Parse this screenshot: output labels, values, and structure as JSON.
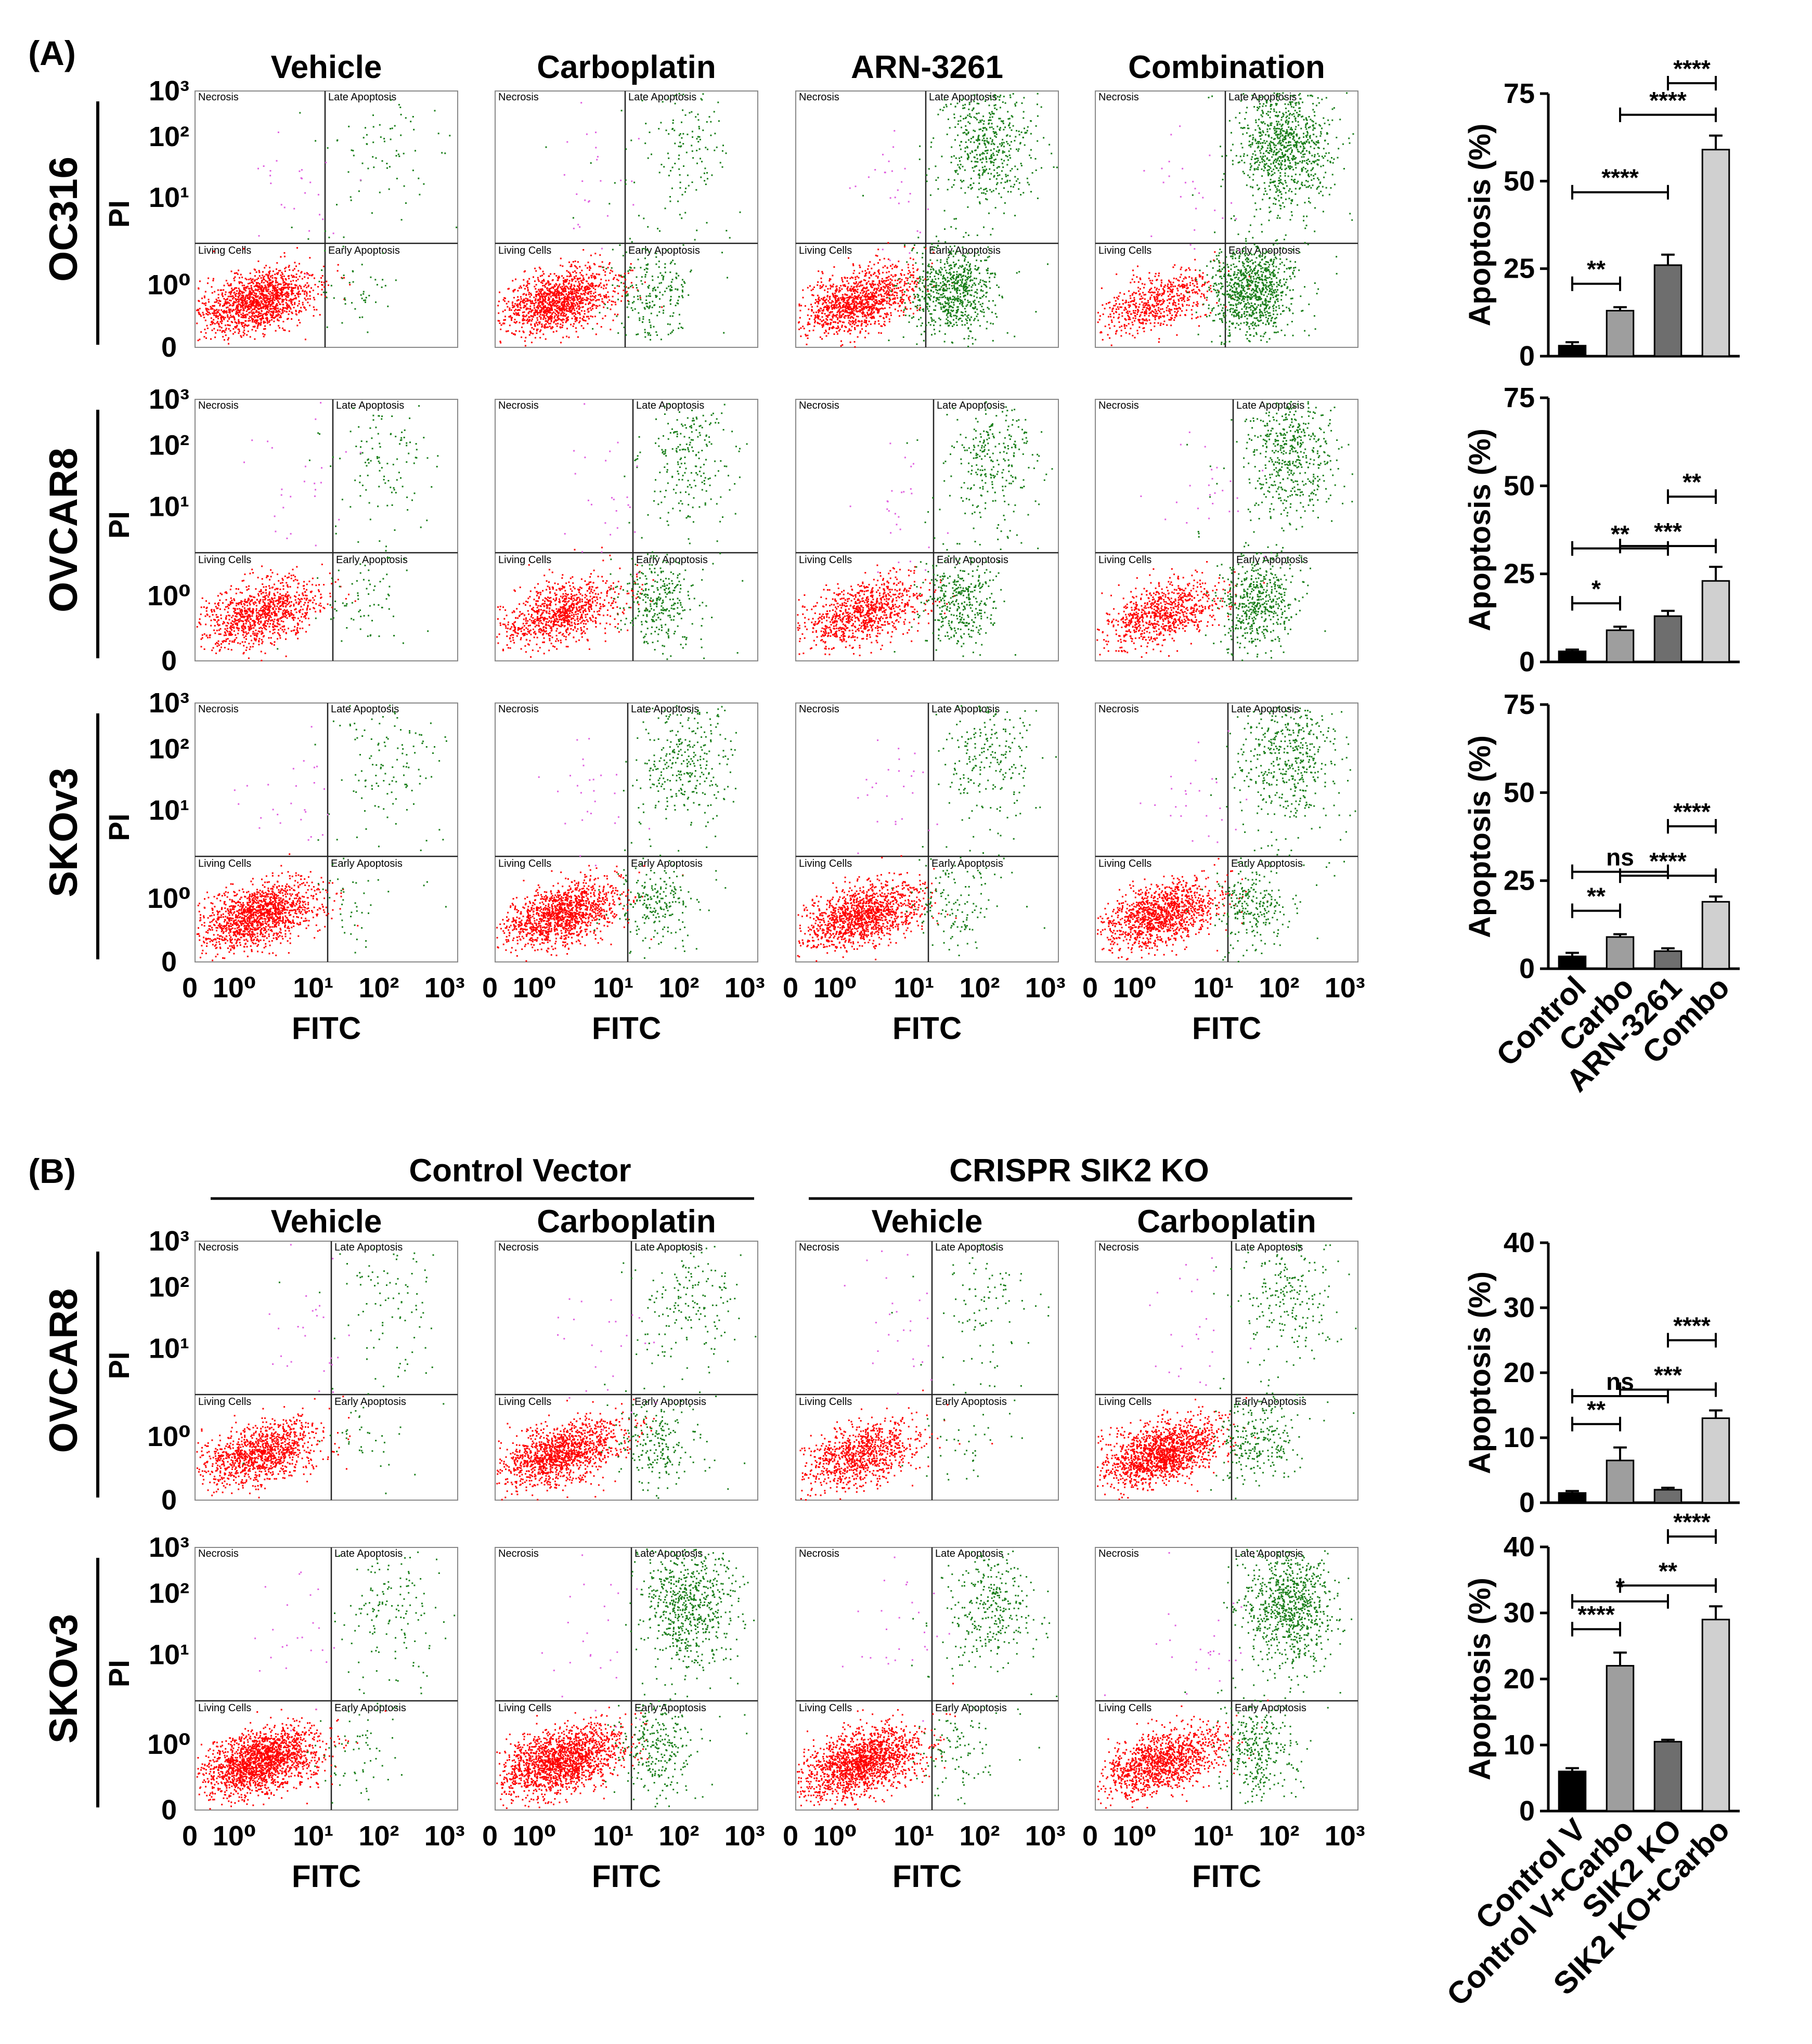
{
  "panels": [
    {
      "label": "(A)",
      "group_headers": [],
      "column_headers": [
        "Vehicle",
        "Carboplatin",
        "ARN-3261",
        "Combination"
      ],
      "rows": [
        "OC316",
        "OVCAR8",
        "SKOv3"
      ]
    },
    {
      "label": "(B)",
      "group_headers": [
        "Control Vector",
        "CRISPR SIK2 KO"
      ],
      "column_headers": [
        "Vehicle",
        "Carboplatin",
        "Vehicle",
        "Carboplatin"
      ],
      "rows": [
        "OVCAR8",
        "SKOv3"
      ]
    }
  ],
  "flow_axes": {
    "y_label": "PI",
    "x_label": "FITC",
    "ticks": [
      "0",
      "10⁰",
      "10¹",
      "10²",
      "10³"
    ],
    "y_ticks": [
      "0",
      "10⁰",
      "10¹",
      "10²",
      "10³"
    ],
    "quadrants": [
      "Necrosis",
      "Late Apoptosis",
      "Living Cells",
      "Early Apoptosis"
    ],
    "colors": {
      "living": "#ff0000",
      "apoptotic": "#1a7f1a",
      "necrotic": "#e060e0"
    }
  },
  "chart_data": [
    {
      "type": "bar",
      "panel": "A",
      "row": "OC316",
      "categories": [
        "Control",
        "Carbo",
        "ARN-3261",
        "Combo"
      ],
      "values": [
        3,
        13,
        26,
        59
      ],
      "errors": [
        1,
        1,
        3,
        4
      ],
      "ylabel": "Apoptosis (%)",
      "ylim": [
        0,
        75
      ],
      "yticks": [
        0,
        25,
        50,
        75
      ],
      "colors": [
        "#000000",
        "#9e9e9e",
        "#6e6e6e",
        "#d0d0d0"
      ],
      "comparisons": [
        {
          "from": 0,
          "to": 1,
          "label": "**"
        },
        {
          "from": 0,
          "to": 2,
          "label": "****"
        },
        {
          "from": 1,
          "to": 3,
          "label": "****"
        },
        {
          "from": 2,
          "to": 3,
          "label": "****"
        }
      ]
    },
    {
      "type": "bar",
      "panel": "A",
      "row": "OVCAR8",
      "categories": [
        "Control",
        "Carbo",
        "ARN-3261",
        "Combo"
      ],
      "values": [
        3,
        9,
        13,
        23
      ],
      "errors": [
        0.5,
        1,
        1.5,
        4
      ],
      "ylabel": "Apoptosis (%)",
      "ylim": [
        0,
        75
      ],
      "yticks": [
        0,
        25,
        50,
        75
      ],
      "colors": [
        "#000000",
        "#9e9e9e",
        "#6e6e6e",
        "#d0d0d0"
      ],
      "comparisons": [
        {
          "from": 0,
          "to": 1,
          "label": "*"
        },
        {
          "from": 0,
          "to": 2,
          "label": "**"
        },
        {
          "from": 1,
          "to": 3,
          "label": "***"
        },
        {
          "from": 2,
          "to": 3,
          "label": "**"
        }
      ]
    },
    {
      "type": "bar",
      "panel": "A",
      "row": "SKOv3",
      "categories": [
        "Control",
        "Carbo",
        "ARN-3261",
        "Combo"
      ],
      "values": [
        3.5,
        9,
        5,
        19
      ],
      "errors": [
        1,
        0.8,
        0.8,
        1.5
      ],
      "ylabel": "Apoptosis (%)",
      "ylim": [
        0,
        75
      ],
      "yticks": [
        0,
        25,
        50,
        75
      ],
      "colors": [
        "#000000",
        "#9e9e9e",
        "#6e6e6e",
        "#d0d0d0"
      ],
      "comparisons": [
        {
          "from": 0,
          "to": 1,
          "label": "**"
        },
        {
          "from": 0,
          "to": 2,
          "label": "ns"
        },
        {
          "from": 1,
          "to": 3,
          "label": "****"
        },
        {
          "from": 2,
          "to": 3,
          "label": "****"
        }
      ]
    },
    {
      "type": "bar",
      "panel": "B",
      "row": "OVCAR8",
      "categories": [
        "Control V",
        "Control V+Carbo",
        "SIK2 KO",
        "SIK2 KO+Carbo"
      ],
      "values": [
        1.5,
        6.5,
        2,
        13
      ],
      "errors": [
        0.3,
        2,
        0.3,
        1.2
      ],
      "ylabel": "Apoptosis (%)",
      "ylim": [
        0,
        40
      ],
      "yticks": [
        0,
        10,
        20,
        30,
        40
      ],
      "colors": [
        "#000000",
        "#9e9e9e",
        "#6e6e6e",
        "#d0d0d0"
      ],
      "comparisons": [
        {
          "from": 0,
          "to": 1,
          "label": "**"
        },
        {
          "from": 0,
          "to": 2,
          "label": "ns"
        },
        {
          "from": 1,
          "to": 3,
          "label": "***"
        },
        {
          "from": 2,
          "to": 3,
          "label": "****"
        }
      ]
    },
    {
      "type": "bar",
      "panel": "B",
      "row": "SKOv3",
      "categories": [
        "Control V",
        "Control V+Carbo",
        "SIK2 KO",
        "SIK2 KO+Carbo"
      ],
      "values": [
        6,
        22,
        10.5,
        29
      ],
      "errors": [
        0.5,
        2,
        0.3,
        2
      ],
      "ylabel": "Apoptosis (%)",
      "ylim": [
        0,
        40
      ],
      "yticks": [
        0,
        10,
        20,
        30,
        40
      ],
      "colors": [
        "#000000",
        "#9e9e9e",
        "#6e6e6e",
        "#d0d0d0"
      ],
      "comparisons": [
        {
          "from": 0,
          "to": 1,
          "label": "****"
        },
        {
          "from": 0,
          "to": 2,
          "label": "*"
        },
        {
          "from": 1,
          "to": 3,
          "label": "**"
        },
        {
          "from": 2,
          "to": 3,
          "label": "****"
        }
      ]
    }
  ]
}
